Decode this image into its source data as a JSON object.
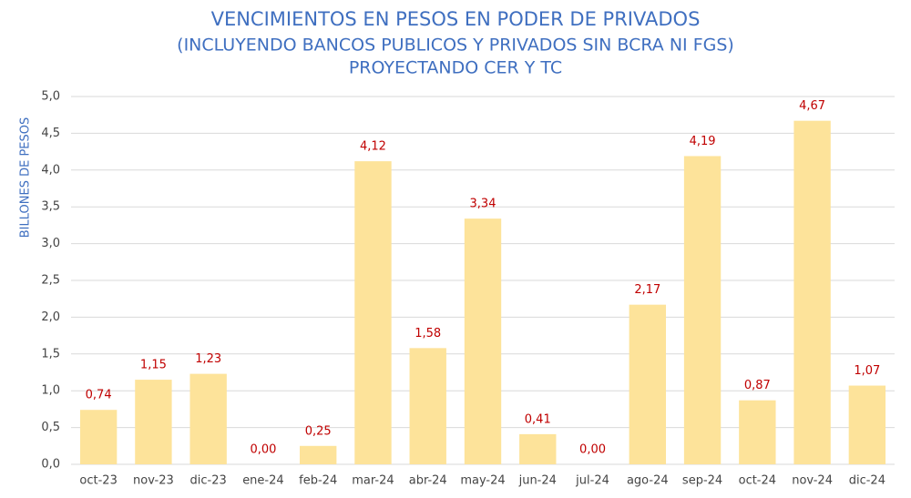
{
  "chart_data": {
    "type": "bar",
    "title": "VENCIMIENTOS EN PESOS EN PODER DE PRIVADOS",
    "subtitle": [
      "(INCLUYENDO BANCOS PUBLICOS Y PRIVADOS SIN BCRA NI FGS)",
      "PROYECTANDO CER Y TC"
    ],
    "y_label": "BILLONES DE PESOS",
    "categories": [
      "oct-23",
      "nov-23",
      "dic-23",
      "ene-24",
      "feb-24",
      "mar-24",
      "abr-24",
      "may-24",
      "jun-24",
      "jul-24",
      "ago-24",
      "sep-24",
      "oct-24",
      "nov-24",
      "dic-24"
    ],
    "values": [
      0.74,
      1.15,
      1.23,
      0,
      0.25,
      4.12,
      1.58,
      3.34,
      0.41,
      0,
      2.17,
      4.19,
      0.87,
      4.67,
      1.07
    ],
    "value_labels": [
      "0,74",
      "1,15",
      "1,23",
      "0,00",
      "0,25",
      "4,12",
      "1,58",
      "3,34",
      "0,41",
      "0,00",
      "2,17",
      "4,19",
      "0,87",
      "4,67",
      "1,07"
    ],
    "color": "#fde39a",
    "ylim": [
      0,
      5
    ],
    "yticks": [
      {
        "value": 0,
        "label": "0,0"
      },
      {
        "value": 0.5,
        "label": "0,5"
      },
      {
        "value": 1,
        "label": "1,0"
      },
      {
        "value": 1.5,
        "label": "1,5"
      },
      {
        "value": 2,
        "label": "2,0"
      },
      {
        "value": 2.5,
        "label": "2,5"
      },
      {
        "value": 3,
        "label": "3,0"
      },
      {
        "value": 3.5,
        "label": "3,5"
      },
      {
        "value": 4,
        "label": "4,0"
      },
      {
        "value": 4.5,
        "label": "4,5"
      },
      {
        "value": 5,
        "label": "5,0"
      }
    ],
    "grid": true
  }
}
